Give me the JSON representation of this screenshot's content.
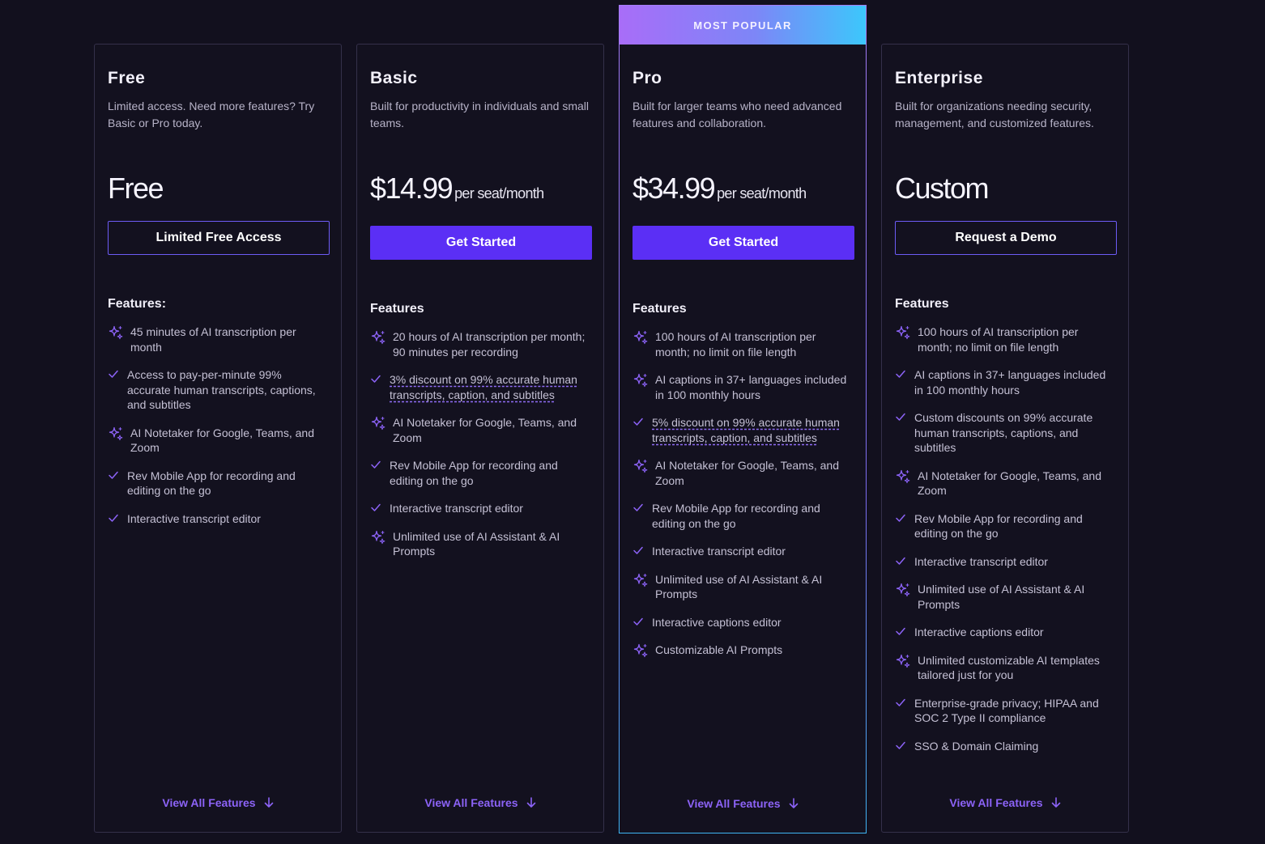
{
  "colors": {
    "background": "#12101e",
    "accent": "#5b2ff5",
    "accent_text": "#8c63f7",
    "banner_start": "#a86df8",
    "banner_end": "#3cc7fb"
  },
  "plans": [
    {
      "name": "Free",
      "description": "Limited access. Need more features? Try Basic or Pro today.",
      "price": "Free",
      "per": "",
      "cta": "Limited Free Access",
      "cta_style": "outline",
      "features_title": "Features:",
      "features": [
        {
          "icon": "sparkle-icon",
          "text": "45 minutes of AI transcription per month",
          "dashed": false
        },
        {
          "icon": "check-icon",
          "text": "Access to pay-per-minute 99% accurate human transcripts, captions, and subtitles",
          "dashed": false
        },
        {
          "icon": "sparkle-icon",
          "text": "AI Notetaker for Google, Teams, and Zoom",
          "dashed": false
        },
        {
          "icon": "check-icon",
          "text": "Rev Mobile App for recording and editing on the go",
          "dashed": false
        },
        {
          "icon": "check-icon",
          "text": "Interactive transcript editor",
          "dashed": false
        }
      ],
      "view_all": "View All Features"
    },
    {
      "name": "Basic",
      "description": "Built for productivity in individuals and small teams.",
      "price": "$14.99",
      "per": "per seat/month",
      "cta": "Get Started",
      "cta_style": "solid",
      "features_title": "Features",
      "features": [
        {
          "icon": "sparkle-icon",
          "text": "20 hours of AI transcription per month; 90 minutes per recording",
          "dashed": false
        },
        {
          "icon": "check-icon",
          "text": "3% discount on 99% accurate human transcripts, caption, and subtitles",
          "dashed": true
        },
        {
          "icon": "sparkle-icon",
          "text": "AI Notetaker for Google, Teams, and Zoom",
          "dashed": false
        },
        {
          "icon": "check-icon",
          "text": "Rev Mobile App for recording and editing on the go",
          "dashed": false
        },
        {
          "icon": "check-icon",
          "text": "Interactive transcript editor",
          "dashed": false
        },
        {
          "icon": "sparkle-icon",
          "text": "Unlimited use of AI Assistant & AI Prompts",
          "dashed": false
        }
      ],
      "view_all": "View All Features"
    },
    {
      "name": "Pro",
      "banner": "MOST POPULAR",
      "description": "Built for larger teams who need advanced features and collaboration.",
      "price": "$34.99",
      "per": "per seat/month",
      "cta": "Get Started",
      "cta_style": "solid",
      "features_title": "Features",
      "features": [
        {
          "icon": "sparkle-icon",
          "text": "100 hours of AI transcription per month; no limit on file length",
          "dashed": false
        },
        {
          "icon": "sparkle-icon",
          "text": "AI captions in 37+ languages included in 100 monthly hours",
          "dashed": false
        },
        {
          "icon": "check-icon",
          "text": "5% discount on 99% accurate human transcripts, caption, and subtitles",
          "dashed": true
        },
        {
          "icon": "sparkle-icon",
          "text": "AI Notetaker for Google, Teams, and Zoom",
          "dashed": false
        },
        {
          "icon": "check-icon",
          "text": "Rev Mobile App for recording and editing on the go",
          "dashed": false
        },
        {
          "icon": "check-icon",
          "text": "Interactive transcript editor",
          "dashed": false
        },
        {
          "icon": "sparkle-icon",
          "text": "Unlimited use of AI Assistant & AI Prompts",
          "dashed": false
        },
        {
          "icon": "check-icon",
          "text": "Interactive captions editor",
          "dashed": false
        },
        {
          "icon": "sparkle-icon",
          "text": "Customizable AI Prompts",
          "dashed": false
        }
      ],
      "view_all": "View All Features"
    },
    {
      "name": "Enterprise",
      "description": "Built for organizations needing security, management, and customized features.",
      "price": "Custom",
      "per": "",
      "cta": "Request a Demo",
      "cta_style": "outline",
      "features_title": "Features",
      "features": [
        {
          "icon": "sparkle-icon",
          "text": "100 hours of AI transcription per month; no limit on file length",
          "dashed": false
        },
        {
          "icon": "check-icon",
          "text": "AI captions in 37+ languages included in 100 monthly hours",
          "dashed": false
        },
        {
          "icon": "check-icon",
          "text": "Custom discounts on 99% accurate human transcripts, captions, and subtitles",
          "dashed": false
        },
        {
          "icon": "sparkle-icon",
          "text": "AI Notetaker for Google, Teams, and Zoom",
          "dashed": false
        },
        {
          "icon": "check-icon",
          "text": "Rev Mobile App for recording and editing on the go",
          "dashed": false
        },
        {
          "icon": "check-icon",
          "text": "Interactive transcript editor",
          "dashed": false
        },
        {
          "icon": "sparkle-icon",
          "text": "Unlimited use of AI Assistant & AI Prompts",
          "dashed": false
        },
        {
          "icon": "check-icon",
          "text": "Interactive captions editor",
          "dashed": false
        },
        {
          "icon": "sparkle-icon",
          "text": "Unlimited customizable AI templates tailored just for you",
          "dashed": false
        },
        {
          "icon": "check-icon",
          "text": "Enterprise-grade privacy; HIPAA and SOC 2 Type II compliance",
          "dashed": false
        },
        {
          "icon": "check-icon",
          "text": "SSO & Domain Claiming",
          "dashed": false
        }
      ],
      "view_all": "View All Features"
    }
  ]
}
